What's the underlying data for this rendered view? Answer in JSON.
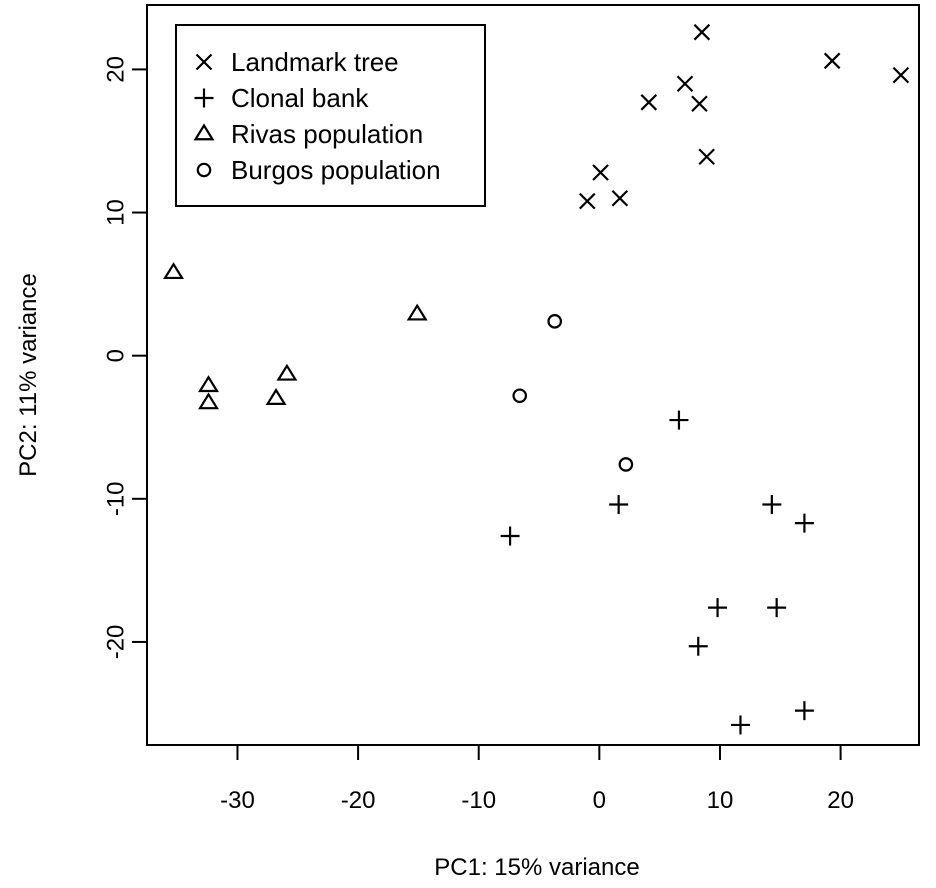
{
  "chart_data": {
    "type": "scatter",
    "xlabel": "PC1: 15% variance",
    "ylabel": "PC2: 11% variance",
    "xlim": [
      -37.5,
      26.5
    ],
    "ylim": [
      -27.2,
      24.5
    ],
    "xticks": [
      -30,
      -20,
      -10,
      0,
      10,
      20
    ],
    "yticks": [
      -20,
      -10,
      0,
      10,
      20
    ],
    "legend_position": "top-left",
    "series": [
      {
        "name": "Landmark tree",
        "marker": "x",
        "points": [
          {
            "x": 8.5,
            "y": 22.6
          },
          {
            "x": 19.3,
            "y": 20.6
          },
          {
            "x": 25.0,
            "y": 19.6
          },
          {
            "x": 7.1,
            "y": 19.0
          },
          {
            "x": 4.1,
            "y": 17.7
          },
          {
            "x": 8.3,
            "y": 17.6
          },
          {
            "x": 8.9,
            "y": 13.9
          },
          {
            "x": 0.1,
            "y": 12.8
          },
          {
            "x": -1.0,
            "y": 10.8
          },
          {
            "x": 1.7,
            "y": 11.0
          }
        ]
      },
      {
        "name": "Clonal bank",
        "marker": "plus",
        "points": [
          {
            "x": 6.6,
            "y": -4.5
          },
          {
            "x": 1.6,
            "y": -10.4
          },
          {
            "x": 14.3,
            "y": -10.4
          },
          {
            "x": 17.0,
            "y": -11.7
          },
          {
            "x": -7.4,
            "y": -12.6
          },
          {
            "x": 9.8,
            "y": -17.6
          },
          {
            "x": 14.7,
            "y": -17.6
          },
          {
            "x": 8.2,
            "y": -20.3
          },
          {
            "x": 17.0,
            "y": -24.8
          },
          {
            "x": 11.7,
            "y": -25.8
          }
        ]
      },
      {
        "name": "Rivas population",
        "marker": "triangle",
        "points": [
          {
            "x": -35.3,
            "y": 5.8
          },
          {
            "x": -15.1,
            "y": 2.9
          },
          {
            "x": -32.4,
            "y": -2.1
          },
          {
            "x": -32.4,
            "y": -3.3
          },
          {
            "x": -25.9,
            "y": -1.3
          },
          {
            "x": -26.8,
            "y": -3.0
          }
        ]
      },
      {
        "name": "Burgos population",
        "marker": "circle",
        "points": [
          {
            "x": -3.7,
            "y": 2.4
          },
          {
            "x": -6.6,
            "y": -2.8
          },
          {
            "x": 2.2,
            "y": -7.6
          }
        ]
      }
    ]
  }
}
